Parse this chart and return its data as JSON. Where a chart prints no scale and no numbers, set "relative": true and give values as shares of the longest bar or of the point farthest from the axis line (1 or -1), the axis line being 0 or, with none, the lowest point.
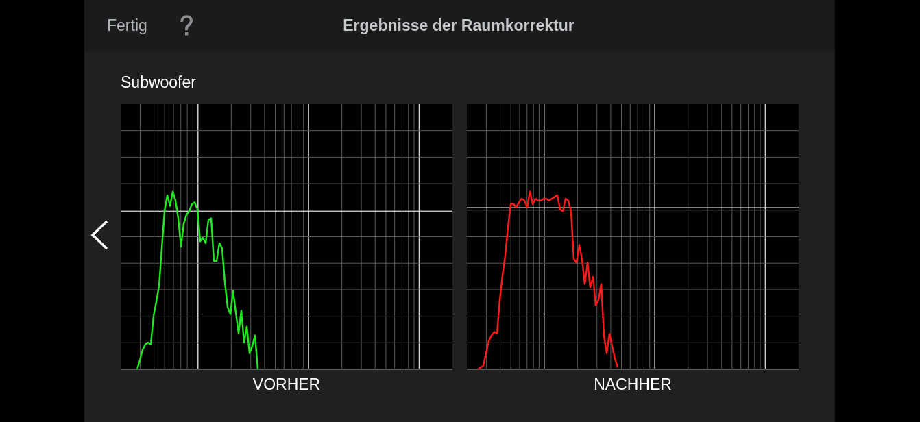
{
  "chart_data": [
    {
      "type": "line",
      "title": "Ergebnisse der Raumkorrektur",
      "subtitle": "Subwoofer",
      "xlabel": "VORHER",
      "annotations": [
        "Fertig"
      ],
      "relative": true,
      "grid": true,
      "categories": [
        null,
        null,
        null,
        null,
        null,
        null,
        null,
        null,
        null,
        null,
        null,
        null,
        null,
        null,
        null,
        null,
        null,
        null,
        null,
        null,
        null,
        null,
        null,
        null,
        null,
        null,
        null,
        null,
        null,
        null,
        null,
        null,
        null,
        null,
        null,
        null,
        null,
        null,
        null,
        null,
        null,
        null,
        null,
        null,
        null,
        null,
        null,
        null,
        null,
        null,
        null,
        null,
        null,
        null,
        null,
        null,
        null,
        null,
        null,
        null,
        null,
        null,
        null,
        null,
        null,
        null,
        null,
        null,
        null,
        null,
        null,
        null,
        null,
        null,
        null,
        null,
        null,
        null,
        null,
        null,
        null,
        null,
        null,
        null,
        null,
        null,
        null,
        null,
        null,
        null,
        null,
        null,
        null,
        null,
        null,
        null,
        null,
        null,
        null,
        null,
        null,
        null,
        null,
        null,
        null,
        null,
        null,
        null,
        null,
        null,
        null,
        null,
        null,
        null,
        null,
        null,
        null,
        null,
        null,
        null,
        null,
        null
      ],
      "ref_lines": [
        {
          "axis": "y",
          "value": 0.89,
          "color": "#ffffff"
        }
      ],
      "series": [
        {
          "color": "#22e622",
          "values": [
            null,
            null,
            null,
            null,
            null,
            null,
            0,
            0.05,
            0.11,
            0.14,
            0.15,
            0.14,
            0.3,
            0.38,
            0.47,
            0.68,
            0.89,
            0.98,
            0.92,
            1,
            0.95,
            0.85,
            0.69,
            0.82,
            0.87,
            0.89,
            0.93,
            0.94,
            0.9,
            0.72,
            0.74,
            0.71,
            0.84,
            0.85,
            0.61,
            0.61,
            0.71,
            0.68,
            0.49,
            0.35,
            0.31,
            0.44,
            0.32,
            0.2,
            0.33,
            0.15,
            0.24,
            0.09,
            0.13,
            0.19,
            0,
            null,
            null,
            null,
            null,
            null,
            null,
            null,
            null,
            null,
            null,
            null,
            null,
            null,
            null,
            null,
            null,
            null,
            null,
            null,
            null,
            null,
            null,
            null,
            null,
            null,
            null,
            null,
            null,
            null,
            null,
            null,
            null,
            null,
            null,
            null,
            null,
            null,
            null,
            null,
            null,
            null,
            null,
            null,
            null,
            null,
            null,
            null,
            null,
            null,
            null,
            null,
            null,
            null,
            null,
            null,
            null,
            null,
            null,
            null,
            null,
            null,
            null,
            null,
            null,
            null,
            null,
            null,
            null,
            null,
            null,
            null
          ]
        }
      ]
    },
    {
      "type": "line",
      "xlabel": "NACHHER",
      "relative": true,
      "grid": true,
      "categories": [
        null,
        null,
        null,
        null,
        null,
        null,
        null,
        null,
        null,
        null,
        null,
        null,
        null,
        null,
        null,
        null,
        null,
        null,
        null,
        null,
        null,
        null,
        null,
        null,
        null,
        null,
        null,
        null,
        null,
        null,
        null,
        null,
        null,
        null,
        null,
        null,
        null,
        null,
        null,
        null,
        null,
        null,
        null,
        null,
        null,
        null,
        null,
        null,
        null,
        null,
        null,
        null,
        null,
        null,
        null,
        null,
        null,
        null,
        null,
        null,
        null,
        null,
        null,
        null,
        null,
        null,
        null,
        null,
        null,
        null,
        null,
        null,
        null,
        null,
        null,
        null,
        null,
        null,
        null,
        null,
        null,
        null,
        null,
        null,
        null,
        null,
        null,
        null,
        null,
        null,
        null,
        null,
        null,
        null,
        null,
        null,
        null,
        null,
        null,
        null,
        null,
        null,
        null,
        null,
        null,
        null,
        null,
        null,
        null,
        null,
        null,
        null,
        null,
        null,
        null,
        null,
        null,
        null,
        null,
        null,
        null,
        null
      ],
      "ref_lines": [
        {
          "axis": "y",
          "value": 0.91,
          "color": "#ffffff"
        }
      ],
      "series": [
        {
          "color": "#ff1a1a",
          "values": [
            null,
            null,
            null,
            null,
            0,
            0.01,
            0.02,
            0.09,
            0.16,
            0.19,
            0.21,
            0.2,
            0.39,
            0.53,
            0.64,
            0.8,
            0.93,
            0.93,
            0.91,
            0.94,
            0.96,
            0.95,
            0.91,
            1,
            0.93,
            0.96,
            0.95,
            0.95,
            0.96,
            0.96,
            0.95,
            0.96,
            0.97,
            0.98,
            0.9,
            0.89,
            0.96,
            0.95,
            0.89,
            0.62,
            0.6,
            0.7,
            0.62,
            0.48,
            0.6,
            0.46,
            0.52,
            0.36,
            0.39,
            0.48,
            0.19,
            0.09,
            0.2,
            0.13,
            0.06,
            0.01,
            null,
            null,
            null,
            null,
            null,
            null,
            null,
            null,
            null,
            null,
            null,
            null,
            null,
            null,
            null,
            null,
            null,
            null,
            null,
            null,
            null,
            null,
            null,
            null,
            null,
            null,
            null,
            null,
            null,
            null,
            null,
            null,
            null,
            null,
            null,
            null,
            null,
            null,
            null,
            null,
            null,
            null,
            null,
            null,
            null,
            null,
            null,
            null,
            null,
            null,
            null,
            null,
            null,
            null,
            null,
            null,
            null,
            null,
            null,
            null,
            null,
            null,
            null,
            null,
            null,
            null
          ]
        }
      ]
    }
  ]
}
